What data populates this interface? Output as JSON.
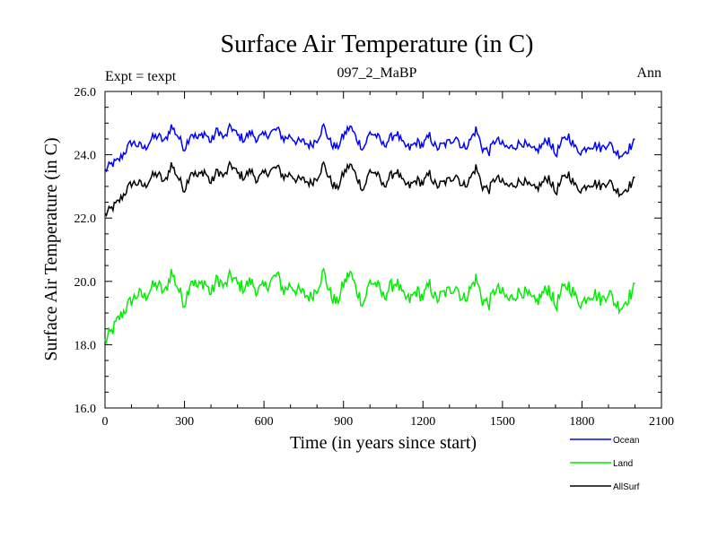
{
  "chart_data": {
    "type": "line",
    "title": "Surface Air Temperature (in C)",
    "subtitle": "097_2_MaBP",
    "left_label": "Expt = texpt",
    "right_label": "Ann",
    "xlabel": "Time (in years since start)",
    "ylabel": "Surface Air Temperature (in C)",
    "xlim": [
      0,
      2100
    ],
    "ylim": [
      16.0,
      26.0
    ],
    "x_ticks": [
      0,
      300,
      600,
      900,
      1200,
      1500,
      1800,
      2100
    ],
    "x_tick_labels": [
      "0",
      "300",
      "600",
      "900",
      "1200",
      "1500",
      "1800",
      "2100"
    ],
    "y_ticks": [
      16,
      18,
      20,
      22,
      24,
      26
    ],
    "y_tick_labels": [
      "16.0",
      "18.0",
      "20.0",
      "22.0",
      "24.0",
      "26.0"
    ],
    "legend_position": "bottom-right",
    "series": [
      {
        "name": "Ocean",
        "color": "#0000ff",
        "x": [
          0,
          25,
          50,
          75,
          100,
          125,
          150,
          175,
          200,
          225,
          250,
          275,
          300,
          325,
          350,
          375,
          400,
          425,
          450,
          475,
          500,
          525,
          550,
          575,
          600,
          625,
          650,
          675,
          700,
          725,
          750,
          775,
          800,
          825,
          850,
          875,
          900,
          925,
          950,
          975,
          1000,
          1025,
          1050,
          1075,
          1100,
          1125,
          1150,
          1175,
          1200,
          1225,
          1250,
          1275,
          1300,
          1325,
          1350,
          1375,
          1400,
          1425,
          1450,
          1475,
          1500,
          1525,
          1550,
          1575,
          1600,
          1625,
          1650,
          1675,
          1700,
          1725,
          1750,
          1775,
          1800,
          1825,
          1850,
          1875,
          1900,
          1925,
          1950,
          1975,
          2000
        ],
        "values": [
          23.5,
          23.7,
          23.8,
          24.1,
          24.4,
          24.3,
          24.2,
          24.5,
          24.6,
          24.4,
          24.9,
          24.6,
          24.2,
          24.7,
          24.5,
          24.7,
          24.4,
          24.8,
          24.5,
          24.9,
          24.6,
          24.5,
          24.7,
          24.5,
          24.6,
          24.7,
          24.8,
          24.5,
          24.6,
          24.4,
          24.4,
          24.3,
          24.5,
          24.9,
          24.4,
          24.2,
          24.6,
          24.9,
          24.5,
          24.2,
          24.7,
          24.6,
          24.3,
          24.5,
          24.7,
          24.3,
          24.2,
          24.4,
          24.3,
          24.6,
          24.2,
          24.3,
          24.4,
          24.6,
          24.2,
          24.4,
          24.8,
          24.2,
          24.1,
          24.5,
          24.3,
          24.2,
          24.3,
          24.4,
          24.2,
          24.1,
          24.3,
          24.5,
          24.0,
          24.4,
          24.6,
          24.2,
          24.1,
          24.3,
          24.3,
          24.2,
          24.4,
          24.1,
          24.0,
          24.2,
          24.4
        ]
      },
      {
        "name": "Land",
        "color": "#00ee00",
        "x": [
          0,
          25,
          50,
          75,
          100,
          125,
          150,
          175,
          200,
          225,
          250,
          275,
          300,
          325,
          350,
          375,
          400,
          425,
          450,
          475,
          500,
          525,
          550,
          575,
          600,
          625,
          650,
          675,
          700,
          725,
          750,
          775,
          800,
          825,
          850,
          875,
          900,
          925,
          950,
          975,
          1000,
          1025,
          1050,
          1075,
          1100,
          1125,
          1150,
          1175,
          1200,
          1225,
          1250,
          1275,
          1300,
          1325,
          1350,
          1375,
          1400,
          1425,
          1450,
          1475,
          1500,
          1525,
          1550,
          1575,
          1600,
          1625,
          1650,
          1675,
          1700,
          1725,
          1750,
          1775,
          1800,
          1825,
          1850,
          1875,
          1900,
          1925,
          1950,
          1975,
          2000
        ],
        "values": [
          18.1,
          18.4,
          18.8,
          19.1,
          19.4,
          19.6,
          19.5,
          19.8,
          19.9,
          19.6,
          20.3,
          19.8,
          19.3,
          20.1,
          19.8,
          20.0,
          19.6,
          20.1,
          19.8,
          20.2,
          19.9,
          19.8,
          20.0,
          19.7,
          19.8,
          20.0,
          20.2,
          19.7,
          19.9,
          19.7,
          19.6,
          19.5,
          19.8,
          20.3,
          19.6,
          19.3,
          19.9,
          20.3,
          19.7,
          19.3,
          20.0,
          19.9,
          19.5,
          19.8,
          20.0,
          19.5,
          19.4,
          19.7,
          19.5,
          19.9,
          19.4,
          19.6,
          19.7,
          19.9,
          19.4,
          19.7,
          20.1,
          19.4,
          19.3,
          19.8,
          19.6,
          19.4,
          19.6,
          19.7,
          19.5,
          19.3,
          19.6,
          19.8,
          19.2,
          19.7,
          19.9,
          19.5,
          19.3,
          19.6,
          19.6,
          19.4,
          19.7,
          19.3,
          19.2,
          19.5,
          19.8
        ]
      },
      {
        "name": "AllSurf",
        "color": "#000000",
        "x": [
          0,
          25,
          50,
          75,
          100,
          125,
          150,
          175,
          200,
          225,
          250,
          275,
          300,
          325,
          350,
          375,
          400,
          425,
          450,
          475,
          500,
          525,
          550,
          575,
          600,
          625,
          650,
          675,
          700,
          725,
          750,
          775,
          800,
          825,
          850,
          875,
          900,
          925,
          950,
          975,
          1000,
          1025,
          1050,
          1075,
          1100,
          1125,
          1150,
          1175,
          1200,
          1225,
          1250,
          1275,
          1300,
          1325,
          1350,
          1375,
          1400,
          1425,
          1450,
          1475,
          1500,
          1525,
          1550,
          1575,
          1600,
          1625,
          1650,
          1675,
          1700,
          1725,
          1750,
          1775,
          1800,
          1825,
          1850,
          1875,
          1900,
          1925,
          1950,
          1975,
          2000
        ],
        "values": [
          22.1,
          22.3,
          22.5,
          22.8,
          23.1,
          23.1,
          23.0,
          23.3,
          23.4,
          23.1,
          23.7,
          23.3,
          22.9,
          23.5,
          23.3,
          23.5,
          23.1,
          23.5,
          23.3,
          23.7,
          23.4,
          23.3,
          23.5,
          23.2,
          23.4,
          23.5,
          23.6,
          23.3,
          23.4,
          23.2,
          23.2,
          23.1,
          23.3,
          23.7,
          23.2,
          22.9,
          23.4,
          23.7,
          23.3,
          22.9,
          23.5,
          23.4,
          23.0,
          23.3,
          23.5,
          23.1,
          23.0,
          23.2,
          23.1,
          23.4,
          23.0,
          23.1,
          23.2,
          23.4,
          23.0,
          23.2,
          23.6,
          23.0,
          22.9,
          23.3,
          23.1,
          23.0,
          23.1,
          23.2,
          23.0,
          22.9,
          23.1,
          23.3,
          22.8,
          23.2,
          23.4,
          23.0,
          22.9,
          23.1,
          23.1,
          23.0,
          23.2,
          22.9,
          22.8,
          23.0,
          23.2
        ]
      }
    ]
  }
}
